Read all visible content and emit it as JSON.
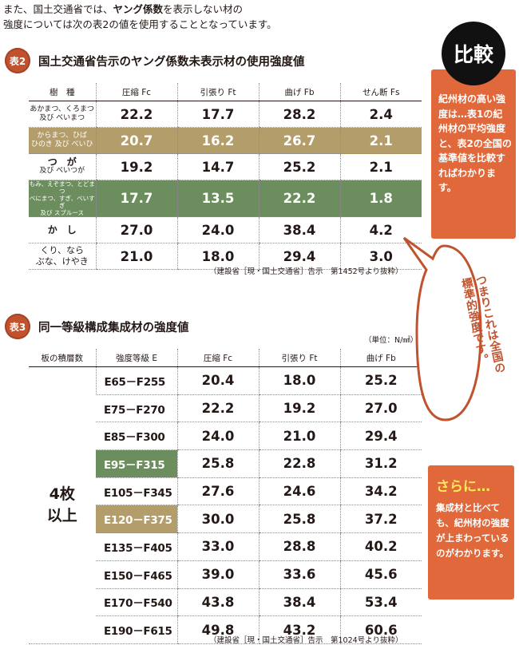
{
  "intro": {
    "line1_pre": "また、国土交通省では、",
    "line1_bold": "ヤング係数",
    "line1_post": "を表示しない材の",
    "line2": "強度については次の表2の値を使用することとなっています。"
  },
  "table2": {
    "badge": "表2",
    "title": "国土交通省告示のヤング係数未表示材の使用強度値",
    "headers": [
      "樹　種",
      "圧縮 Fc",
      "引張り Ft",
      "曲げ Fb",
      "せん断 Fs"
    ],
    "rows": [
      {
        "species_l1": "あかまつ、くろまつ",
        "species_l2": "及び べいまつ",
        "fc": "22.2",
        "ft": "17.7",
        "fb": "28.2",
        "fs": "2.4"
      },
      {
        "species_l1": "からまつ、ひば",
        "species_l2": "ひのき 及び べいひ",
        "fc": "20.7",
        "ft": "16.2",
        "fb": "26.7",
        "fs": "2.1"
      },
      {
        "species_l1": "つ　が",
        "species_l2": "及び べいつが",
        "fc": "19.2",
        "ft": "14.7",
        "fb": "25.2",
        "fs": "2.1"
      },
      {
        "species_l1": "もみ、えぞまつ、とどまつ",
        "species_l2": "べにまつ、すぎ、べいすぎ",
        "species_l3": "及び スプルース",
        "fc": "17.7",
        "ft": "13.5",
        "fb": "22.2",
        "fs": "1.8"
      },
      {
        "species_l1": "か　し",
        "fc": "27.0",
        "ft": "24.0",
        "fb": "38.4",
        "fs": "4.2"
      },
      {
        "species_l1": "くり、なら",
        "species_l2": "ぶな、けやき",
        "fc": "21.0",
        "ft": "18.0",
        "fb": "29.4",
        "fs": "3.0"
      }
    ],
    "source": "（建設省［現・国土交通省］告示　第1452号より抜粋）"
  },
  "table3": {
    "badge": "表3",
    "title": "同一等級構成集成材の強度値",
    "unit": "（単位：N/㎟）",
    "headers": [
      "板の積層数",
      "強度等級 E",
      "圧縮 Fc",
      "引張り Ft",
      "曲げ Fb"
    ],
    "layer_l1": "4枚",
    "layer_l2": "以上",
    "rows": [
      {
        "grade": "E65－F255",
        "fc": "20.4",
        "ft": "18.0",
        "fb": "25.2"
      },
      {
        "grade": "E75－F270",
        "fc": "22.2",
        "ft": "19.2",
        "fb": "27.0"
      },
      {
        "grade": "E85－F300",
        "fc": "24.0",
        "ft": "21.0",
        "fb": "29.4"
      },
      {
        "grade": "E95－F315",
        "fc": "25.8",
        "ft": "22.8",
        "fb": "31.2"
      },
      {
        "grade": "E105－F345",
        "fc": "27.6",
        "ft": "24.6",
        "fb": "34.2"
      },
      {
        "grade": "E120－F375",
        "fc": "30.0",
        "ft": "25.8",
        "fb": "37.2"
      },
      {
        "grade": "E135－F405",
        "fc": "33.0",
        "ft": "28.8",
        "fb": "40.2"
      },
      {
        "grade": "E150－F465",
        "fc": "39.0",
        "ft": "33.6",
        "fb": "45.6"
      },
      {
        "grade": "E170－F540",
        "fc": "43.8",
        "ft": "38.4",
        "fb": "53.4"
      },
      {
        "grade": "E190－F615",
        "fc": "49.8",
        "ft": "43.2",
        "fb": "60.6"
      }
    ],
    "source": "（建設省［現・国土交通省］告示　第1024号より抜粋）"
  },
  "side": {
    "hikaku": "比較",
    "box1": "紀州材の高い強度は…表1の紀州材の平均強度と、表2の全国の基準値を比較すればわかります。",
    "bubble_l1": "つまりこれは全国の",
    "bubble_l2": "標準的強度です。",
    "box2_head": "さらに…",
    "box2_text": "集成材と比べても、紀州材の強度が上まわっているのがわかります。"
  },
  "colors": {
    "tan": "#b39d6b",
    "green": "#6c8d5e",
    "orange": "#e0683a",
    "badge": "#c0532e"
  }
}
